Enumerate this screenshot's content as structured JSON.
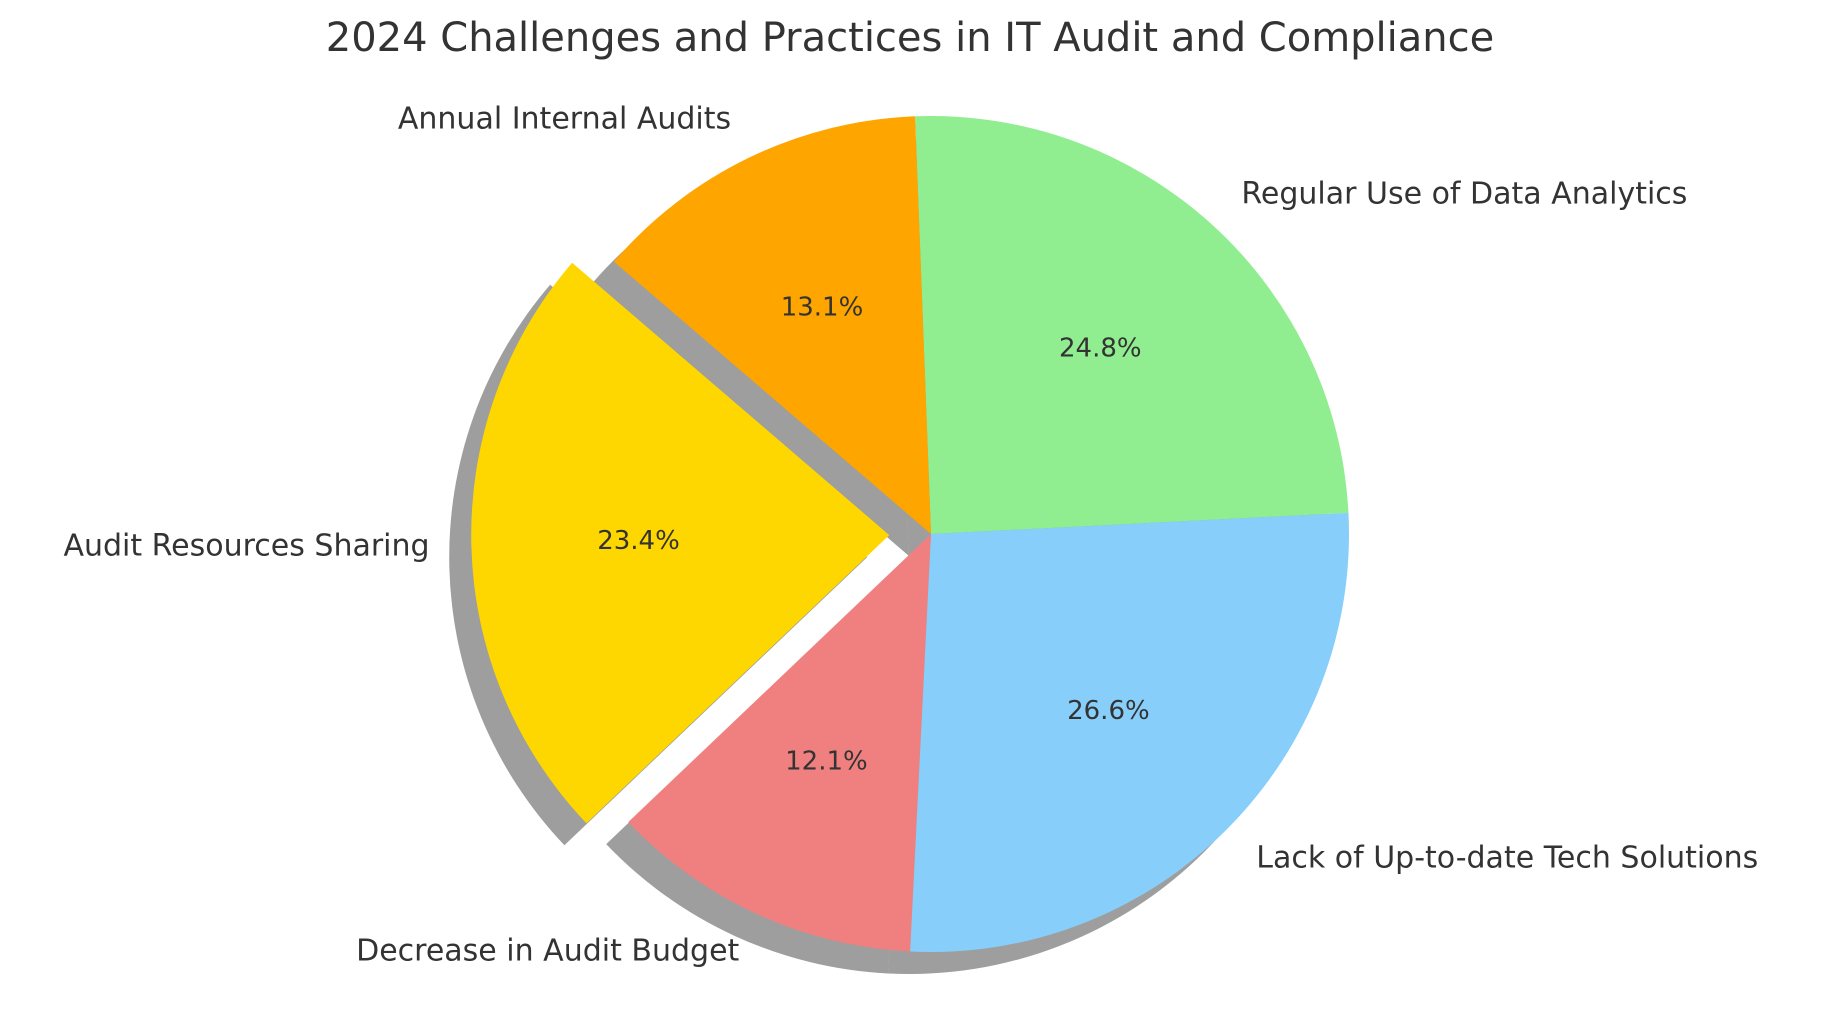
{
  "chart_data": {
    "type": "pie",
    "title": "2024 Challenges and Practices in IT Audit and Compliance",
    "categories": [
      "Regular Use of Data Analytics",
      "Annual Internal Audits",
      "Audit Resources Sharing",
      "Decrease in Audit Budget",
      "Lack of Up-to-date Tech Solutions"
    ],
    "values": [
      24.8,
      13.1,
      23.4,
      12.1,
      26.6
    ],
    "value_labels": [
      "24.8%",
      "13.1%",
      "23.4%",
      "12.1%",
      "26.6%"
    ],
    "colors": [
      "#90ee90",
      "#ffa500",
      "#ffd700",
      "#f08080",
      "#87cefa"
    ],
    "explode": [
      0,
      0,
      0.1,
      0,
      0
    ],
    "shadow": true
  }
}
